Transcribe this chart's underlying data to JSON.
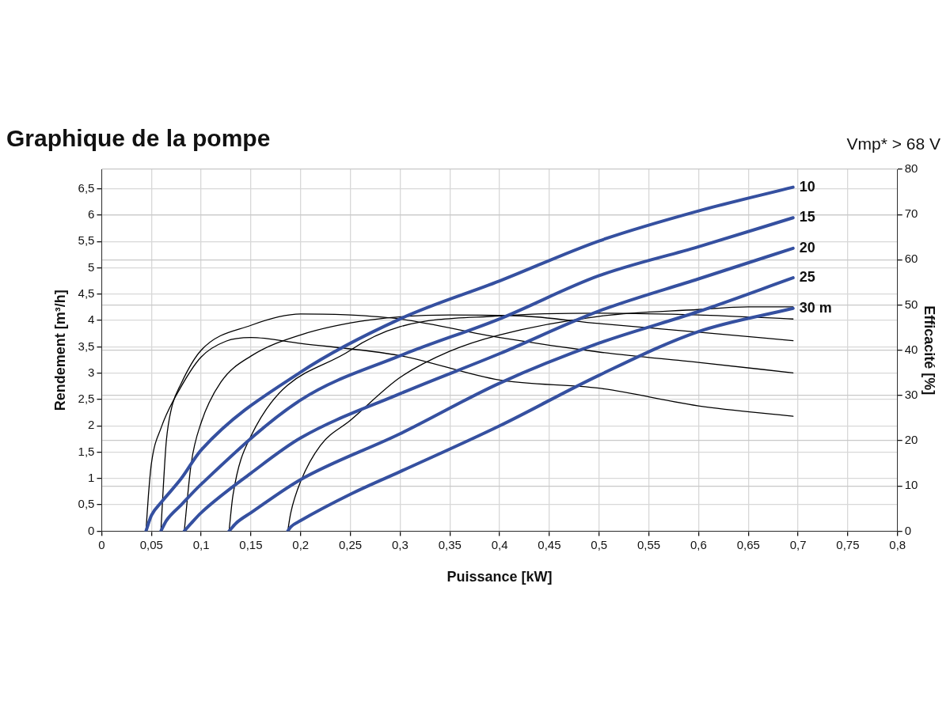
{
  "chart_data": {
    "type": "line",
    "title": "Graphique de la pompe",
    "subtitle": "Vmp* > 68 V",
    "xlabel": "Puissance [kW]",
    "ylabel": "Rendement [m³/h]",
    "y2label": "Efficacité [%]",
    "xlim": [
      0,
      0.8
    ],
    "xticks": [
      0,
      {
        "value": 0.05,
        "label": "0,05"
      },
      {
        "value": 0.1,
        "label": "0,1"
      },
      {
        "value": 0.15,
        "label": "0,15"
      },
      {
        "value": 0.2,
        "label": "0,2"
      },
      {
        "value": 0.25,
        "label": "0,25"
      },
      {
        "value": 0.3,
        "label": "0,3"
      },
      {
        "value": 0.35,
        "label": "0,35"
      },
      {
        "value": 0.4,
        "label": "0,4"
      },
      {
        "value": 0.45,
        "label": "0,45"
      },
      {
        "value": 0.5,
        "label": "0,5"
      },
      {
        "value": 0.55,
        "label": "0,55"
      },
      {
        "value": 0.6,
        "label": "0,6"
      },
      {
        "value": 0.65,
        "label": "0,65"
      },
      {
        "value": 0.7,
        "label": "0,7"
      },
      {
        "value": 0.75,
        "label": "0,75"
      },
      {
        "value": 0.8,
        "label": "0,8"
      }
    ],
    "ylim": [
      0,
      6.87
    ],
    "yticks": [
      0,
      {
        "value": 0.5,
        "label": "0,5"
      },
      1,
      {
        "value": 1.5,
        "label": "1,5"
      },
      2,
      {
        "value": 2.5,
        "label": "2,5"
      },
      3,
      {
        "value": 3.5,
        "label": "3,5"
      },
      4,
      {
        "value": 4.5,
        "label": "4,5"
      },
      5,
      {
        "value": 5.5,
        "label": "5,5"
      },
      6,
      {
        "value": 6.5,
        "label": "6,5"
      }
    ],
    "y2lim": [
      0,
      80
    ],
    "y2ticks": [
      0,
      10,
      20,
      30,
      40,
      50,
      60,
      70,
      80
    ],
    "grid": true,
    "legend": false,
    "marker": "none",
    "line_style": "solid",
    "series": [
      {
        "name": "10",
        "color": "#3550a0",
        "x": [
          0.0445,
          0.05,
          0.06,
          0.08,
          0.1,
          0.2,
          0.3,
          0.4,
          0.5,
          0.6,
          0.695
        ],
        "values": [
          0,
          0.3,
          0.55,
          1.0,
          1.54,
          3.02,
          4.03,
          4.75,
          5.51,
          6.08,
          6.53
        ]
      },
      {
        "name": "15",
        "color": "#3550a0",
        "x": [
          0.0595,
          0.065,
          0.08,
          0.1,
          0.2,
          0.3,
          0.4,
          0.5,
          0.6,
          0.695
        ],
        "values": [
          0,
          0.2,
          0.5,
          0.89,
          2.49,
          3.33,
          4.03,
          4.85,
          5.4,
          5.95
        ]
      },
      {
        "name": "20",
        "color": "#3550a0",
        "x": [
          0.083,
          0.09,
          0.1,
          0.15,
          0.2,
          0.3,
          0.4,
          0.5,
          0.6,
          0.695
        ],
        "values": [
          0,
          0.15,
          0.35,
          1.1,
          1.77,
          2.61,
          3.37,
          4.18,
          4.79,
          5.37
        ]
      },
      {
        "name": "25",
        "color": "#3550a0",
        "x": [
          0.128,
          0.135,
          0.15,
          0.2,
          0.3,
          0.4,
          0.5,
          0.6,
          0.695
        ],
        "values": [
          0,
          0.15,
          0.35,
          0.98,
          1.85,
          2.81,
          3.57,
          4.17,
          4.81
        ]
      },
      {
        "name": "30 m",
        "color": "#3550a0",
        "x": [
          0.187,
          0.19,
          0.2,
          0.25,
          0.3,
          0.4,
          0.5,
          0.6,
          0.695
        ],
        "values": [
          0,
          0.08,
          0.2,
          0.7,
          1.13,
          2.0,
          2.96,
          3.79,
          4.23
        ]
      },
      {
        "color": "#000000",
        "axis": "y2",
        "x": [
          0.0445,
          0.047,
          0.05,
          0.06,
          0.08,
          0.1,
          0.125,
          0.15,
          0.2,
          0.3,
          0.4,
          0.5,
          0.6,
          0.695
        ],
        "values": [
          0,
          8,
          15,
          23,
          32,
          38.5,
          42,
          42.8,
          41.5,
          38.8,
          33.4,
          31.6,
          27.7,
          25.4
        ]
      },
      {
        "color": "#000000",
        "axis": "y2",
        "x": [
          0.0595,
          0.062,
          0.065,
          0.07,
          0.08,
          0.1,
          0.15,
          0.2,
          0.25,
          0.3,
          0.4,
          0.5,
          0.6,
          0.695
        ],
        "values": [
          0,
          10,
          20,
          27,
          32.7,
          40,
          45.5,
          48,
          47.8,
          46.9,
          42.8,
          39.6,
          37.3,
          35
        ]
      },
      {
        "color": "#000000",
        "axis": "y2",
        "x": [
          0.083,
          0.09,
          0.1,
          0.12,
          0.15,
          0.2,
          0.27,
          0.35,
          0.42,
          0.5,
          0.6,
          0.695
        ],
        "values": [
          0,
          15,
          24,
          33,
          38.7,
          43.4,
          46.7,
          47.8,
          47.6,
          45.9,
          44,
          42.1
        ]
      },
      {
        "color": "#000000",
        "axis": "y2",
        "x": [
          0.128,
          0.132,
          0.15,
          0.25,
          0.3,
          0.4,
          0.5,
          0.6,
          0.695
        ],
        "values": [
          0,
          8,
          21,
          40,
          45.2,
          47.6,
          48.2,
          47.8,
          46.9
        ]
      },
      {
        "color": "#000000",
        "axis": "y2",
        "x": [
          0.187,
          0.19,
          0.2,
          0.22,
          0.25,
          0.3,
          0.35,
          0.4,
          0.5,
          0.6,
          0.65,
          0.695
        ],
        "values": [
          0,
          4,
          11,
          19,
          24.5,
          34,
          39.8,
          43.4,
          47.5,
          49,
          49.6,
          49.6
        ]
      }
    ]
  }
}
